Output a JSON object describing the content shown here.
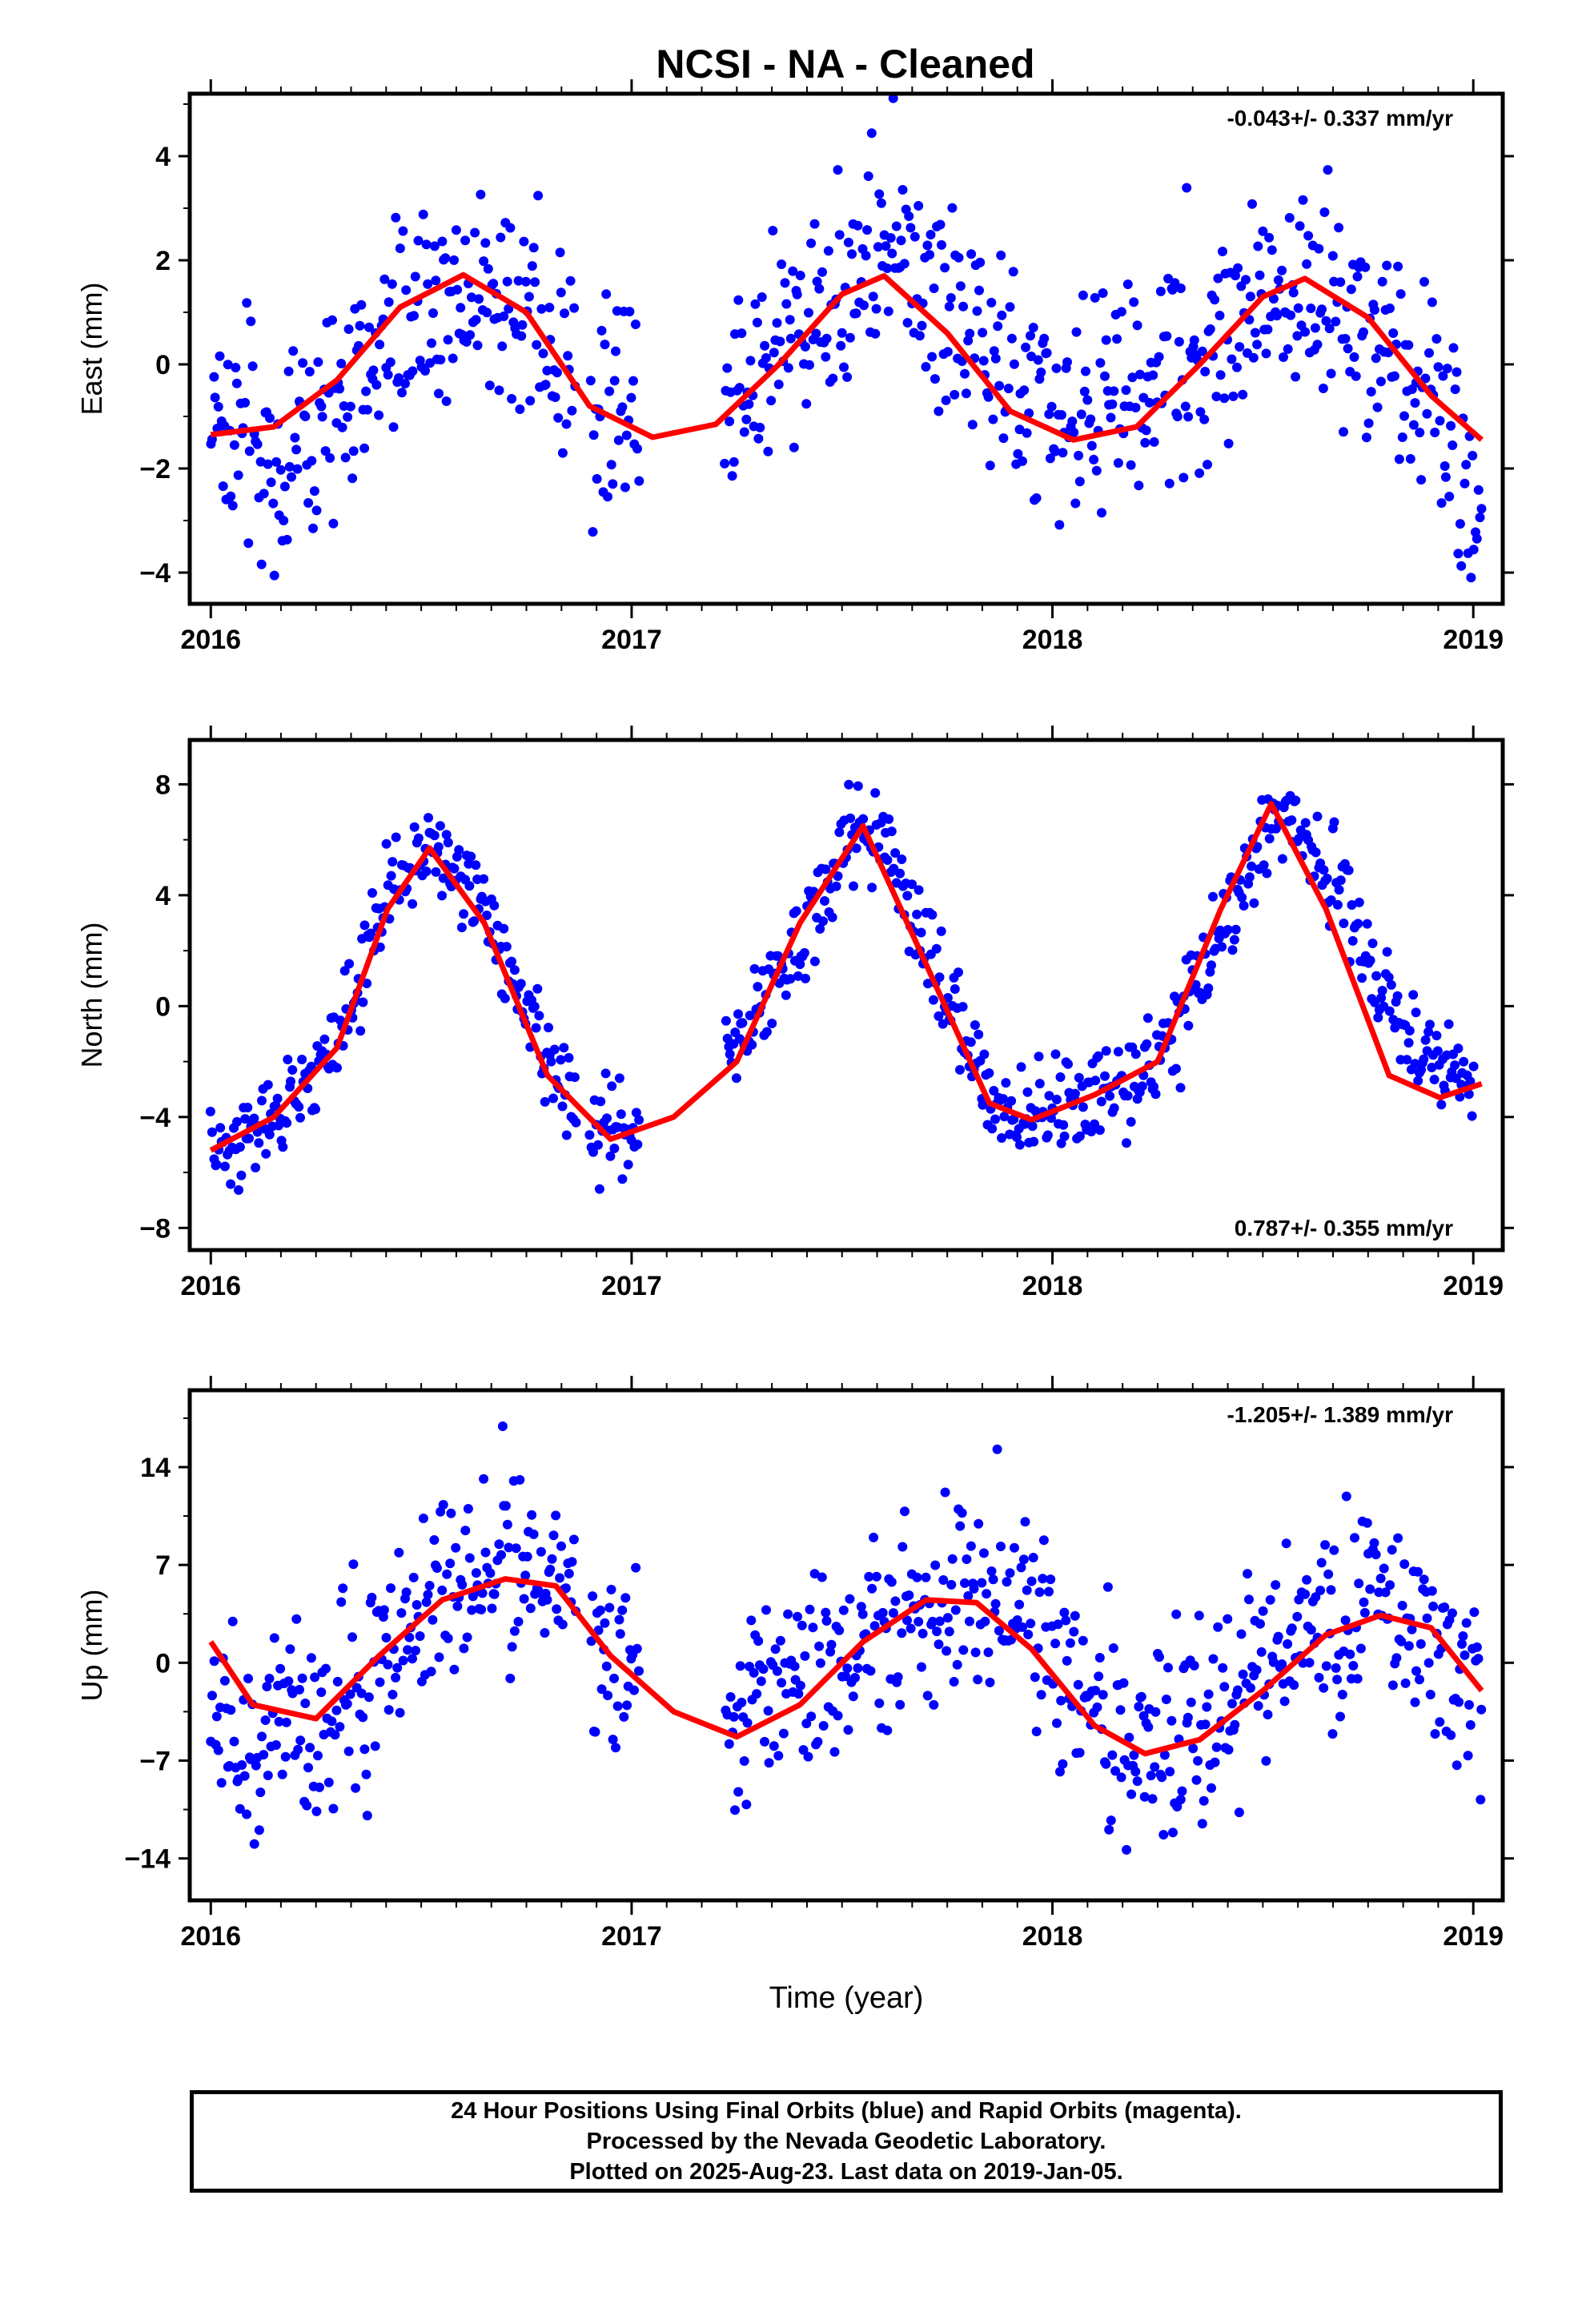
{
  "chart_data": [
    {
      "type": "scatter",
      "title": "NCSI  - NA - Cleaned",
      "ylabel": "East (mm)",
      "xlabel": "",
      "xlim": [
        2015.95,
        2019.07
      ],
      "ylim": [
        -4.6,
        5.2
      ],
      "yticks": [
        -4,
        -2,
        0,
        2,
        4
      ],
      "xticks": [
        2016,
        2017,
        2018,
        2019
      ],
      "grid": false,
      "rate_text": "-0.043+/- 0.337 mm/yr",
      "rate_position": "top-right",
      "points": {
        "color": "#0000ff",
        "seasonal": [
          [
            2016.0,
            -1.0
          ],
          [
            2016.15,
            -1.8
          ],
          [
            2016.3,
            -1.0
          ],
          [
            2016.45,
            1.0
          ],
          [
            2016.6,
            1.7
          ],
          [
            2016.75,
            1.0
          ],
          [
            2016.85,
            -0.2
          ],
          [
            2016.92,
            -1.0
          ],
          [
            2016.98,
            -0.7
          ],
          [
            2017.25,
            -0.5
          ],
          [
            2017.4,
            0.8
          ],
          [
            2017.55,
            2.0
          ],
          [
            2017.7,
            1.8
          ],
          [
            2017.85,
            0.0
          ],
          [
            2018.0,
            -1.0
          ],
          [
            2018.15,
            -0.8
          ],
          [
            2018.3,
            0.2
          ],
          [
            2018.45,
            1.0
          ],
          [
            2018.6,
            1.3
          ],
          [
            2018.75,
            0.8
          ],
          [
            2018.9,
            -0.5
          ],
          [
            2019.02,
            -2.6
          ]
        ],
        "gaps": [
          [
            2016.87,
            2016.9
          ],
          [
            2017.02,
            2017.22
          ]
        ],
        "scatter": 1.05,
        "count": 820
      },
      "fit_curve": {
        "color": "#ff0000",
        "x": [
          2016.0,
          2016.15,
          2016.3,
          2016.45,
          2016.6,
          2016.75,
          2016.9,
          2017.05,
          2017.2,
          2017.35,
          2017.5,
          2017.6,
          2017.75,
          2017.9,
          2018.05,
          2018.2,
          2018.35,
          2018.5,
          2018.6,
          2018.75,
          2018.9,
          2019.02
        ],
        "y": [
          -1.35,
          -1.2,
          -0.3,
          1.1,
          1.72,
          1.0,
          -0.8,
          -1.4,
          -1.15,
          0.0,
          1.35,
          1.7,
          0.6,
          -0.9,
          -1.45,
          -1.2,
          0.0,
          1.3,
          1.65,
          0.9,
          -0.6,
          -1.45
        ]
      }
    },
    {
      "type": "scatter",
      "title": "",
      "ylabel": "North (mm)",
      "xlabel": "",
      "xlim": [
        2015.95,
        2019.07
      ],
      "ylim": [
        -8.8,
        9.6
      ],
      "yticks": [
        -8,
        -4,
        0,
        4,
        8
      ],
      "xticks": [
        2016,
        2017,
        2018,
        2019
      ],
      "grid": false,
      "rate_text": "0.787+/- 0.355 mm/yr",
      "rate_position": "bottom-right",
      "points": {
        "color": "#0000ff",
        "seasonal": [
          [
            2016.0,
            -5.2
          ],
          [
            2016.15,
            -4.2
          ],
          [
            2016.3,
            -1.5
          ],
          [
            2016.42,
            4.0
          ],
          [
            2016.52,
            6.0
          ],
          [
            2016.65,
            3.5
          ],
          [
            2016.8,
            -2.0
          ],
          [
            2016.92,
            -4.5
          ],
          [
            2017.0,
            -4.8
          ],
          [
            2017.25,
            -1.5
          ],
          [
            2017.4,
            2.5
          ],
          [
            2017.55,
            6.8
          ],
          [
            2017.7,
            2.5
          ],
          [
            2017.85,
            -3.5
          ],
          [
            2018.0,
            -4.0
          ],
          [
            2018.15,
            -3.0
          ],
          [
            2018.3,
            -1.0
          ],
          [
            2018.45,
            4.5
          ],
          [
            2018.55,
            7.0
          ],
          [
            2018.7,
            4.0
          ],
          [
            2018.85,
            -1.5
          ],
          [
            2019.0,
            -2.8
          ]
        ],
        "gaps": [
          [
            2016.87,
            2016.9
          ],
          [
            2017.02,
            2017.22
          ]
        ],
        "scatter": 0.85,
        "count": 820
      },
      "fit_curve": {
        "color": "#ff0000",
        "x": [
          2016.0,
          2016.15,
          2016.3,
          2016.42,
          2016.52,
          2016.65,
          2016.8,
          2016.95,
          2017.1,
          2017.25,
          2017.4,
          2017.55,
          2017.7,
          2017.85,
          2017.95,
          2018.1,
          2018.25,
          2018.4,
          2018.52,
          2018.65,
          2018.8,
          2018.92,
          2019.02
        ],
        "y": [
          -5.2,
          -4.0,
          -1.5,
          3.5,
          5.7,
          3.0,
          -2.5,
          -4.8,
          -4.0,
          -2.0,
          3.0,
          6.5,
          1.5,
          -3.5,
          -4.1,
          -3.2,
          -2.0,
          3.5,
          7.3,
          3.5,
          -2.5,
          -3.3,
          -2.8
        ]
      }
    },
    {
      "type": "scatter",
      "title": "",
      "ylabel": "Up (mm)",
      "xlabel": "Time (year)",
      "xlim": [
        2015.95,
        2019.07
      ],
      "ylim": [
        -17.0,
        19.5
      ],
      "yticks": [
        -14,
        -7,
        0,
        7,
        14
      ],
      "xticks": [
        2016,
        2017,
        2018,
        2019
      ],
      "grid": false,
      "rate_text": "-1.205+/- 1.389 mm/yr",
      "rate_position": "top-right",
      "points": {
        "color": "#0000ff",
        "seasonal": [
          [
            2016.0,
            -4.0
          ],
          [
            2016.1,
            -6.0
          ],
          [
            2016.25,
            -5.0
          ],
          [
            2016.4,
            0.0
          ],
          [
            2016.55,
            5.0
          ],
          [
            2016.7,
            8.0
          ],
          [
            2016.85,
            6.0
          ],
          [
            2016.95,
            1.0
          ],
          [
            2017.25,
            -5.0
          ],
          [
            2017.4,
            -1.0
          ],
          [
            2017.55,
            2.0
          ],
          [
            2017.7,
            4.5
          ],
          [
            2017.85,
            5.0
          ],
          [
            2018.0,
            0.0
          ],
          [
            2018.15,
            -6.0
          ],
          [
            2018.3,
            -6.0
          ],
          [
            2018.45,
            -1.0
          ],
          [
            2018.6,
            2.5
          ],
          [
            2018.75,
            4.0
          ],
          [
            2018.9,
            1.5
          ],
          [
            2019.02,
            -2.0
          ]
        ],
        "gaps": [
          [
            2016.87,
            2016.9
          ],
          [
            2017.02,
            2017.22
          ]
        ],
        "scatter": 3.6,
        "count": 820
      },
      "fit_curve": {
        "color": "#ff0000",
        "x": [
          2016.0,
          2016.1,
          2016.25,
          2016.4,
          2016.55,
          2016.7,
          2016.82,
          2016.95,
          2017.1,
          2017.25,
          2017.4,
          2017.55,
          2017.7,
          2017.82,
          2017.95,
          2018.1,
          2018.22,
          2018.35,
          2018.5,
          2018.65,
          2018.78,
          2018.9,
          2019.02
        ],
        "y": [
          1.5,
          -3.0,
          -4.0,
          0.5,
          4.5,
          6.0,
          5.5,
          0.5,
          -3.5,
          -5.3,
          -3.0,
          1.5,
          4.5,
          4.3,
          1.0,
          -4.5,
          -6.5,
          -5.5,
          -2.0,
          2.0,
          3.4,
          2.5,
          -2.0
        ]
      }
    }
  ],
  "caption": {
    "line1": "24 Hour Positions Using Final Orbits (blue) and Rapid Orbits (magenta).",
    "line2": "Processed by the Nevada Geodetic Laboratory.",
    "line3": "Plotted on 2025-Aug-23. Last data on 2019-Jan-05."
  }
}
